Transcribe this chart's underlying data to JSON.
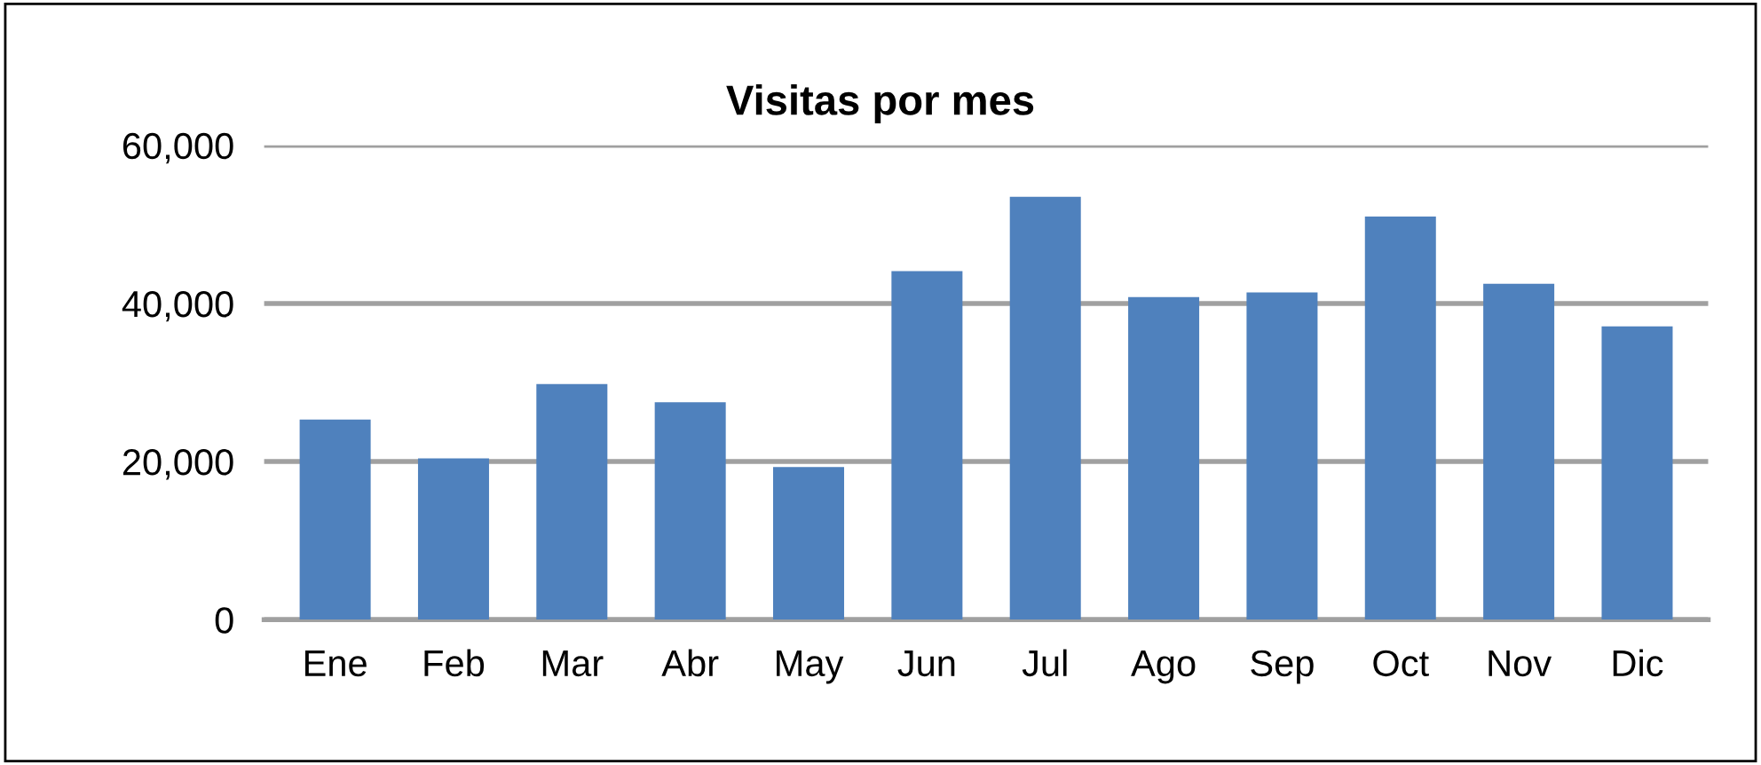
{
  "chart_data": {
    "type": "bar",
    "title": "Visitas por mes",
    "categories": [
      "Ene",
      "Feb",
      "Mar",
      "Abr",
      "May",
      "Jun",
      "Jul",
      "Ago",
      "Sep",
      "Oct",
      "Nov",
      "Dic"
    ],
    "values": [
      25300,
      20400,
      29800,
      27500,
      19300,
      44100,
      53500,
      40800,
      41400,
      51000,
      42500,
      37100
    ],
    "color": "#4f81bd",
    "ylim": [
      0,
      60000
    ],
    "yticks": [
      {
        "value": 0,
        "label": "0"
      },
      {
        "value": 20000,
        "label": "20,000"
      },
      {
        "value": 40000,
        "label": "40,000"
      },
      {
        "value": 60000,
        "label": "60,000"
      }
    ],
    "grid": "y"
  }
}
